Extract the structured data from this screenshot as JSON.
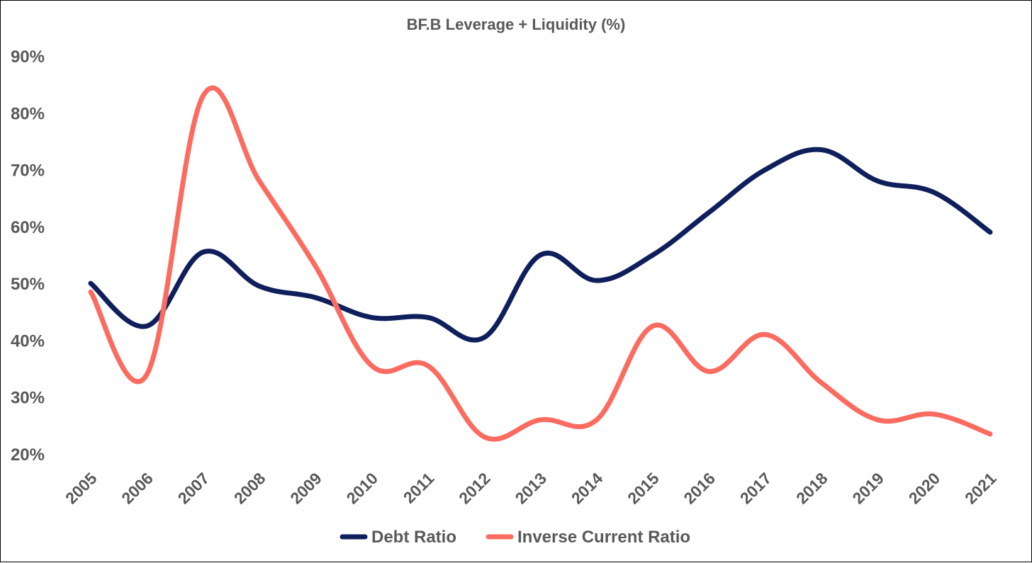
{
  "chart_data": {
    "type": "line",
    "title": "BF.B Leverage + Liquidity (%)",
    "categories": [
      "2005",
      "2006",
      "2007",
      "2008",
      "2009",
      "2010",
      "2011",
      "2012",
      "2013",
      "2014",
      "2015",
      "2016",
      "2017",
      "2018",
      "2019",
      "2020",
      "2021"
    ],
    "yticks": [
      "20%",
      "30%",
      "40%",
      "50%",
      "60%",
      "70%",
      "80%",
      "90%"
    ],
    "ylim": [
      20,
      90
    ],
    "ylabel": "",
    "xlabel": "",
    "grid": false,
    "smooth": true,
    "legend_position": "bottom",
    "series": [
      {
        "name": "Debt Ratio",
        "color": "#0f1f5c",
        "values": [
          50,
          42.5,
          55.5,
          49.5,
          47.5,
          44,
          44,
          40.5,
          55,
          50.5,
          55,
          62.5,
          70,
          73.5,
          68,
          66,
          59
        ]
      },
      {
        "name": "Inverse Current Ratio",
        "color": "#fb6b60",
        "values": [
          48.5,
          34,
          83,
          68,
          53,
          35.5,
          35.5,
          23,
          26,
          26,
          42.5,
          34.5,
          41,
          32.5,
          26,
          27,
          23.5
        ]
      }
    ]
  }
}
